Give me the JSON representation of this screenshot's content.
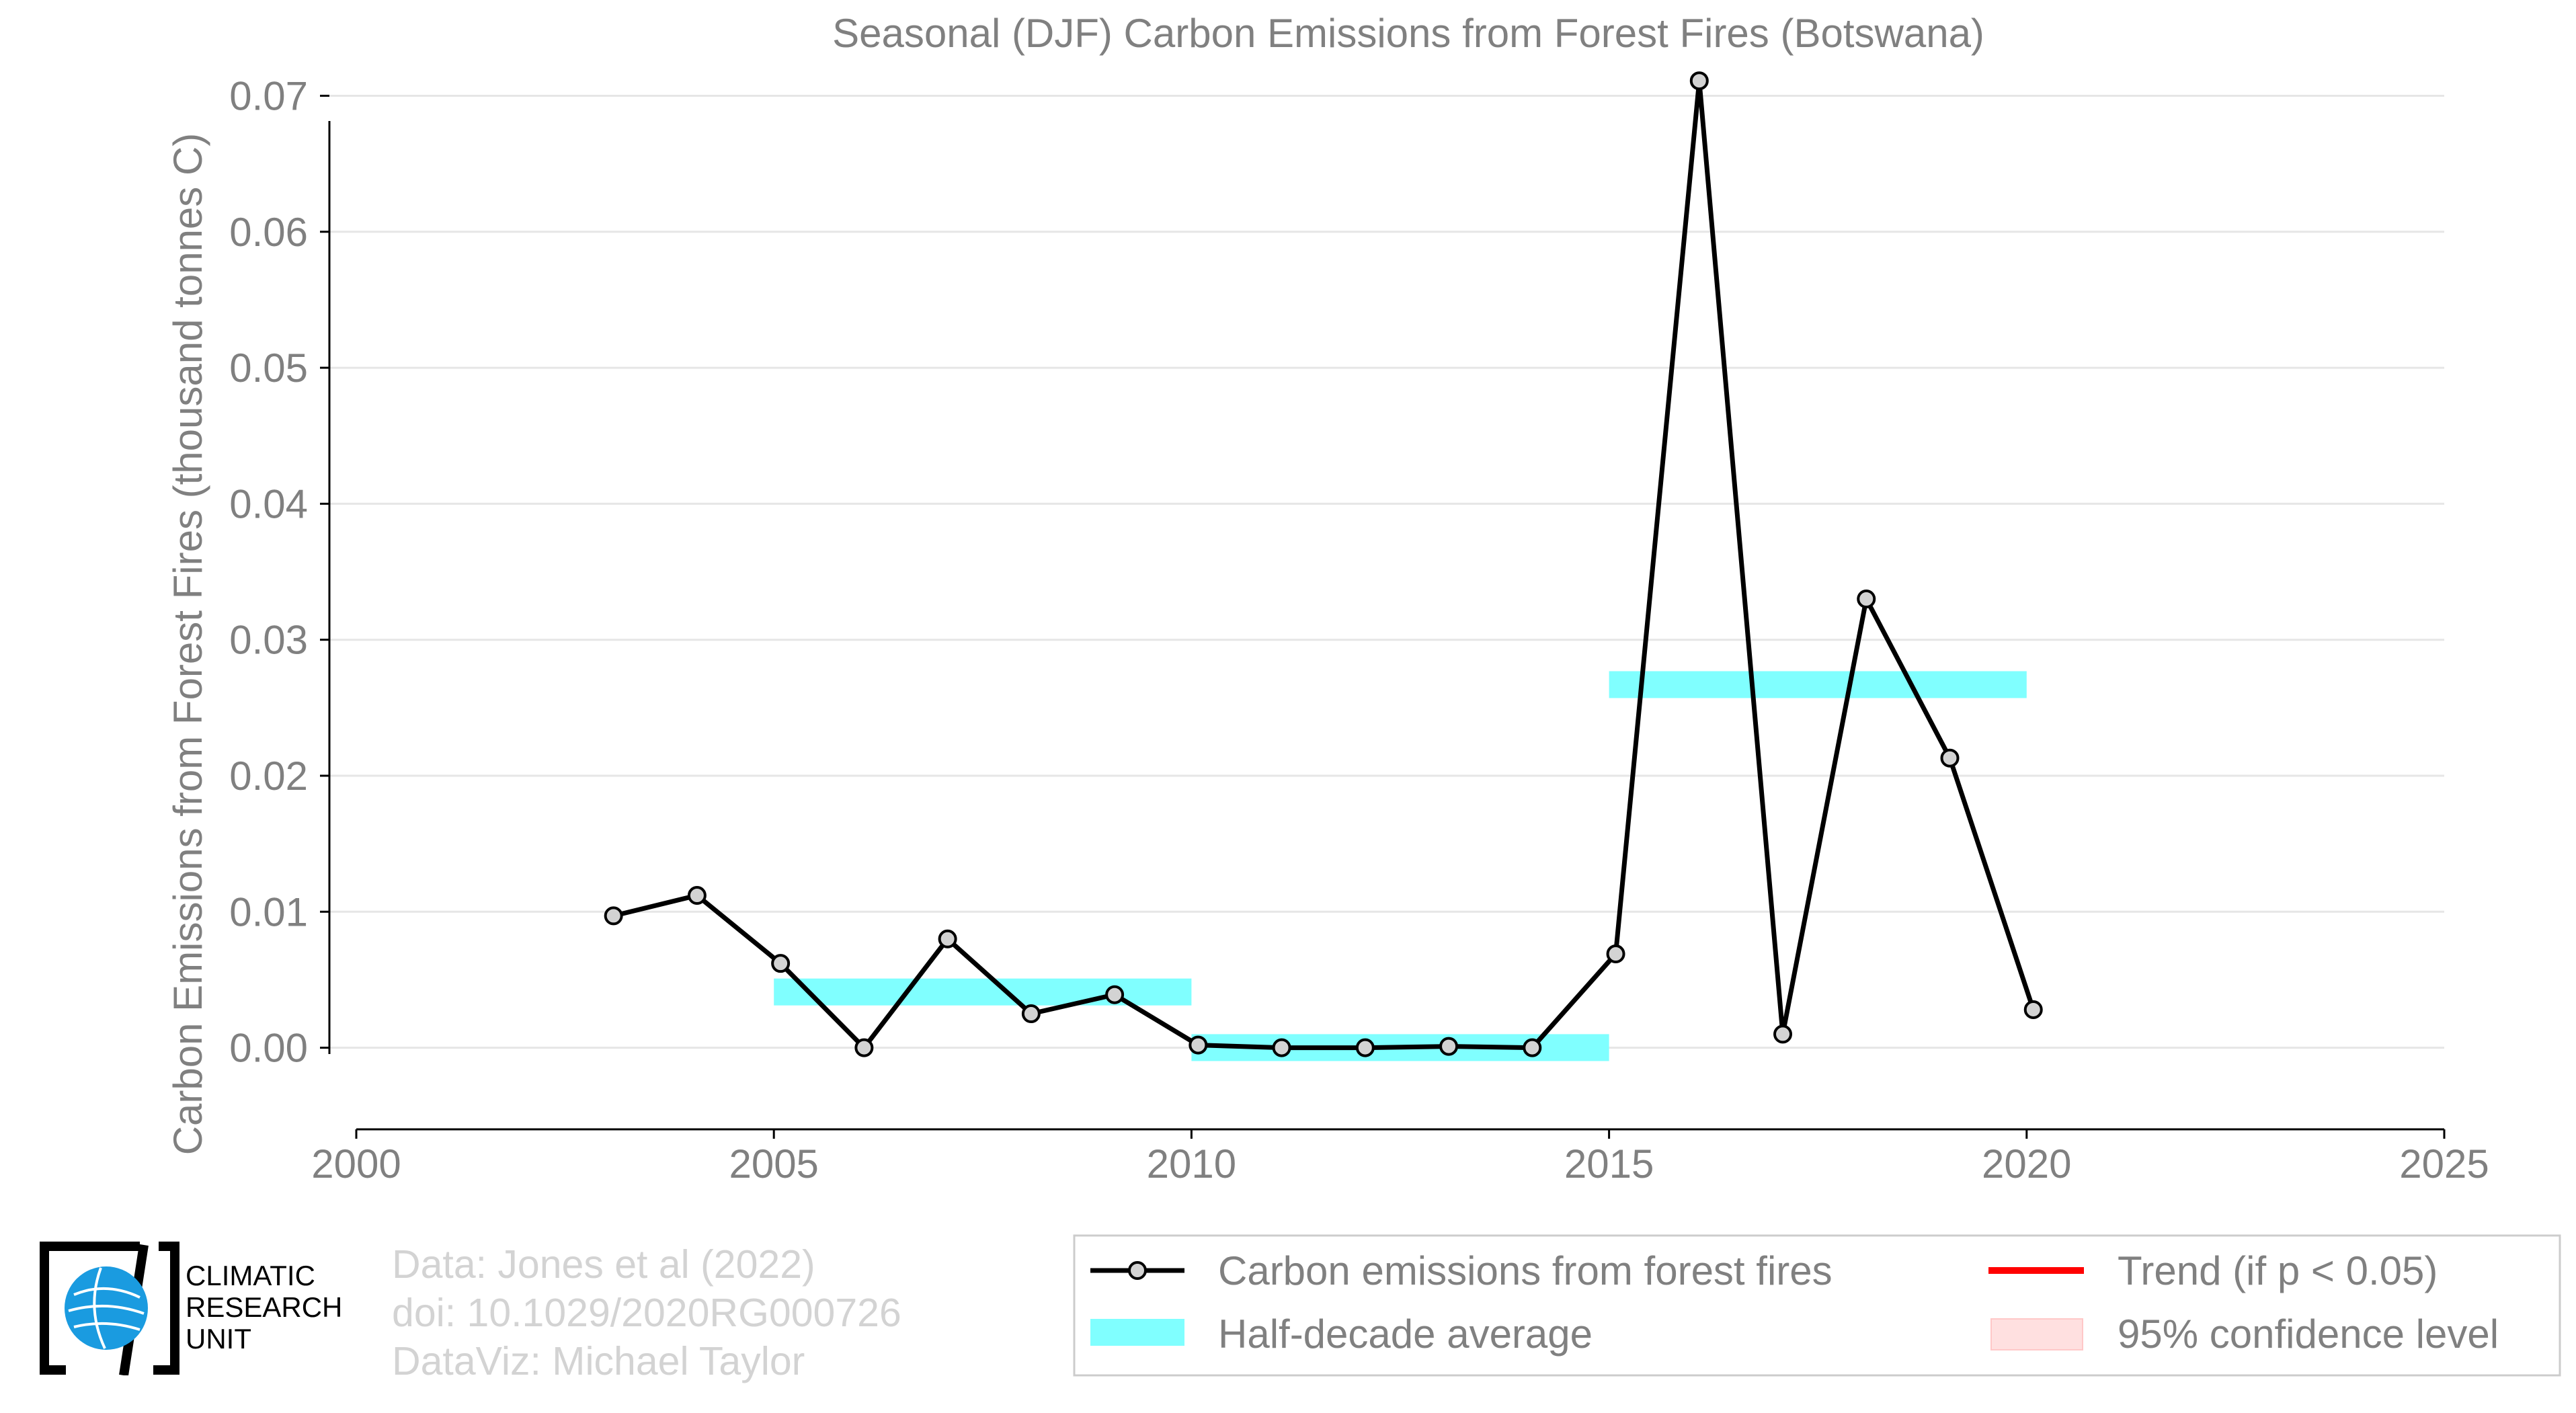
{
  "chart_data": {
    "type": "line",
    "title": "Seasonal (DJF) Carbon Emissions from Forest Fires (Botswana)",
    "xlabel": "",
    "ylabel": "Carbon Emissions from Forest Fires (thousand tonnes C)",
    "xlim": [
      2000,
      2025
    ],
    "ylim": [
      -0.006,
      0.072
    ],
    "x_ticks": [
      "2000",
      "2005",
      "2010",
      "2015",
      "2020",
      "2025"
    ],
    "y_ticks": [
      "0.00",
      "0.01",
      "0.02",
      "0.03",
      "0.04",
      "0.05",
      "0.06",
      "0.07"
    ],
    "grid": "horizontal",
    "legend_position": "bottom-right",
    "series": [
      {
        "name": "Carbon emissions from forest fires",
        "color": "#000000",
        "marker_color": "#d3d3d3",
        "x": [
          2003,
          2004,
          2005,
          2006,
          2007,
          2008,
          2009,
          2010,
          2011,
          2012,
          2013,
          2014,
          2015,
          2016,
          2017,
          2018,
          2019,
          2020
        ],
        "y": [
          0.0097,
          0.0112,
          0.0062,
          0.0,
          0.008,
          0.0025,
          0.0039,
          0.0002,
          0.0,
          0.0,
          0.0001,
          0.0,
          0.0069,
          0.0711,
          0.001,
          0.033,
          0.0213,
          0.0028
        ]
      },
      {
        "name": "Half-decade average",
        "color": "#80ffff",
        "segments": [
          {
            "x0": 2005,
            "x1": 2010,
            "y": 0.0041
          },
          {
            "x0": 2010,
            "x1": 2015,
            "y": 1e-05
          },
          {
            "x0": 2015,
            "x1": 2020,
            "y": 0.0267
          }
        ]
      }
    ],
    "legend": [
      {
        "label": "Carbon emissions from forest fires",
        "symbol": "line-marker",
        "color": "#000000"
      },
      {
        "label": "Half-decade average",
        "symbol": "band",
        "color": "#80ffff"
      },
      {
        "label": "Trend (if p < 0.05)",
        "symbol": "line",
        "color": "#ff0000"
      },
      {
        "label": "95% confidence level",
        "symbol": "patch",
        "color": "#ffe0e0"
      }
    ]
  },
  "credits": {
    "line1": "Data: Jones et al (2022)",
    "line2": "doi: 10.1029/2020RG000726",
    "line3": "DataViz: Michael Taylor"
  },
  "logo": {
    "line1": "CLIMATIC",
    "line2": "RESEARCH",
    "line3": "UNIT"
  }
}
